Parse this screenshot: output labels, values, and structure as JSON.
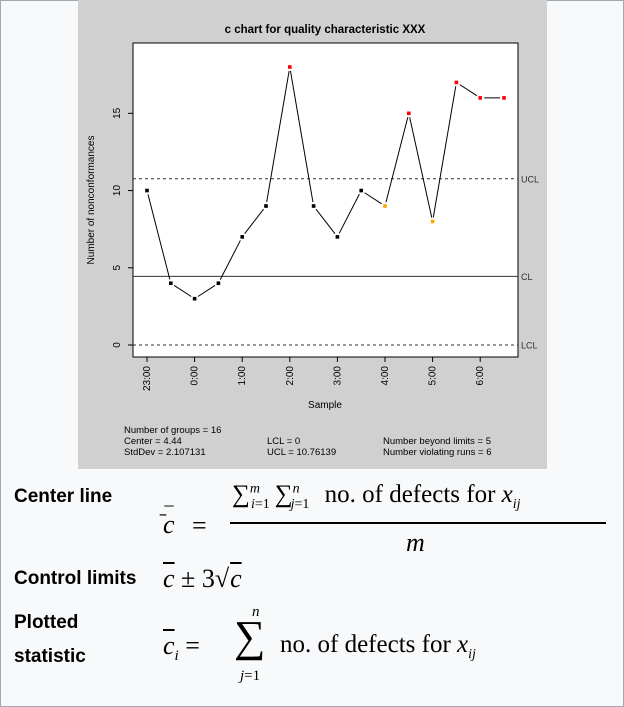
{
  "chart_data": {
    "type": "line",
    "title": "c chart for quality characteristic XXX",
    "xlabel": "Sample",
    "ylabel": "Number of nonconformances",
    "y_ticks": [
      "0",
      "5",
      "10",
      "15"
    ],
    "x_ticks": [
      "23:00",
      "0:00",
      "1:00",
      "2:00",
      "3:00",
      "4:00",
      "5:00",
      "6:00"
    ],
    "x_tick_positions": [
      1,
      3,
      5,
      7,
      9,
      11,
      13,
      15
    ],
    "values": [
      10,
      4,
      3,
      4,
      7,
      9,
      18,
      9,
      7,
      10,
      9,
      15,
      8,
      17,
      16,
      16
    ],
    "point_status": [
      "normal",
      "normal",
      "normal",
      "normal",
      "normal",
      "normal",
      "beyond_limits",
      "normal",
      "normal",
      "normal",
      "violating_run",
      "beyond_limits",
      "violating_run",
      "beyond_limits",
      "beyond_limits",
      "beyond_limits"
    ],
    "center_line": 4.44,
    "ucl": 10.76139,
    "lcl": 0,
    "line_labels": {
      "ucl": "UCL",
      "cl": "CL",
      "lcl": "LCL"
    },
    "ylim": [
      0,
      18
    ],
    "colors": {
      "normal": "#000000",
      "beyond_limits": "#ff0000",
      "violating_run": "#ffa500",
      "panel_bg": "#d0d0d0",
      "plot_bg": "#ffffff"
    }
  },
  "stats": {
    "groups": "Number of groups = 16",
    "center": "Center = 4.44",
    "stddev": "StdDev = 2.107131",
    "lcl": "LCL = 0",
    "ucl": "UCL = 10.76139",
    "beyond": "Number beyond limits = 5",
    "runs": "Number violating runs = 6"
  },
  "formulas": {
    "center_label": "Center line",
    "limits_label": "Control limits",
    "plotted_label_1": "Plotted",
    "plotted_label_2": "statistic",
    "defects_text": "no. of defects for"
  }
}
